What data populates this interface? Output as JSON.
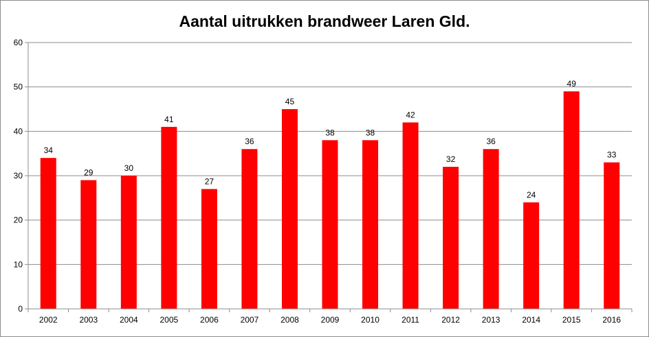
{
  "chart_data": {
    "type": "bar",
    "title": "Aantal uitrukken brandweer Laren Gld.",
    "xlabel": "",
    "ylabel": "",
    "categories": [
      "2002",
      "2003",
      "2004",
      "2005",
      "2006",
      "2007",
      "2008",
      "2009",
      "2010",
      "2011",
      "2012",
      "2013",
      "2014",
      "2015",
      "2016"
    ],
    "values": [
      34,
      29,
      30,
      41,
      27,
      36,
      45,
      38,
      38,
      42,
      32,
      36,
      24,
      49,
      33
    ],
    "ylim": [
      0,
      60
    ],
    "yticks": [
      "0",
      "10",
      "20",
      "30",
      "40",
      "50",
      "60"
    ],
    "grid": true,
    "legend": "none",
    "colors": {
      "bar": "#ff0000",
      "grid": "#8c8c8c",
      "axis": "#8c8c8c"
    }
  }
}
